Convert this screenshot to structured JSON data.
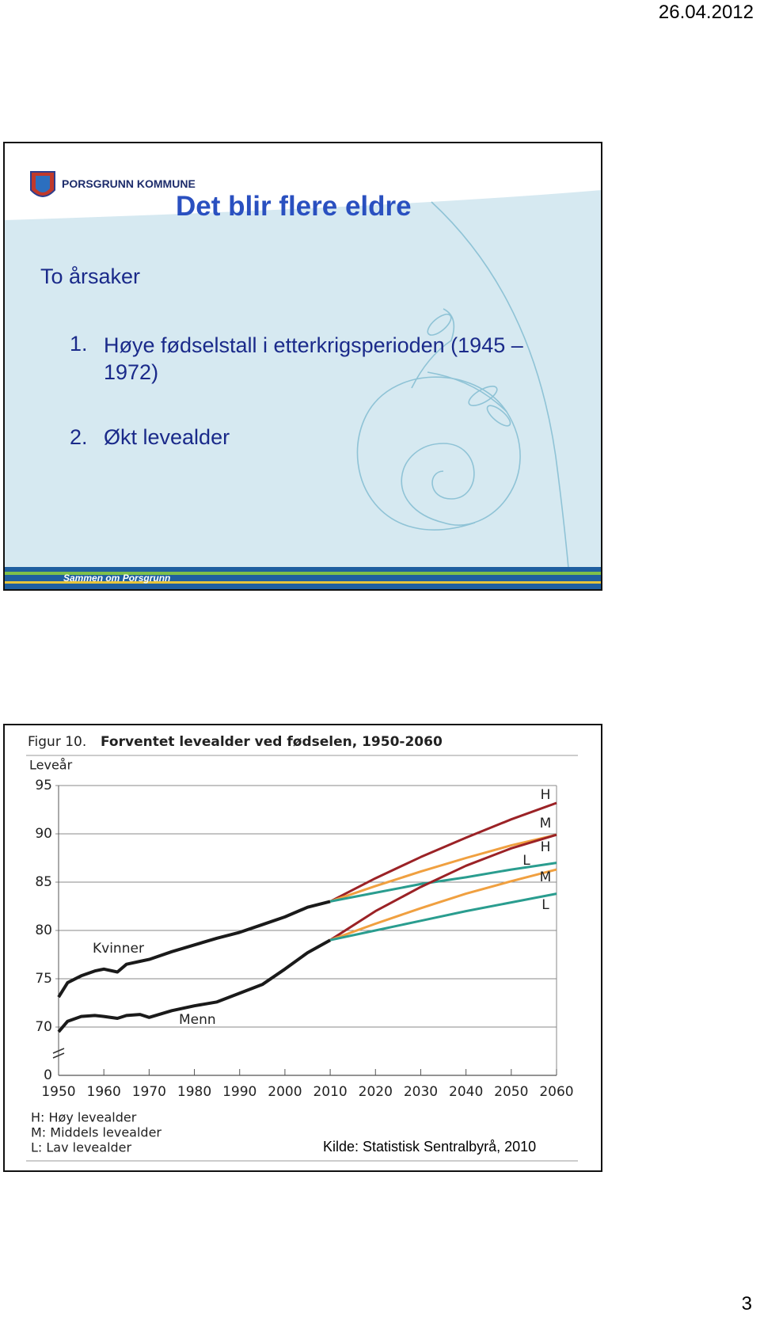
{
  "header": {
    "date": "26.04.2012"
  },
  "slide1": {
    "logo_text": "PORSGRUNN KOMMUNE",
    "title": "Det blir flere eldre",
    "intro": "To årsaker",
    "items": [
      {
        "number": "1.",
        "text": "Høye fødselstall i etterkrigsperioden (1945 – 1972)"
      },
      {
        "number": "2.",
        "text": "Økt levealder"
      }
    ],
    "slogan": "Sammen om Porsgrunn"
  },
  "chart_data": {
    "type": "line",
    "figure_label": "Figur 10.",
    "title": "Forventet levealder ved fødselen, 1950-2060",
    "y_label": "Leveår",
    "y_break_label": "0",
    "xlim": [
      1950,
      2060
    ],
    "xticks": [
      1950,
      1960,
      1970,
      1980,
      1990,
      2000,
      2010,
      2020,
      2030,
      2040,
      2050,
      2060
    ],
    "ylim": [
      65,
      95
    ],
    "yticks": [
      70,
      75,
      80,
      85,
      90,
      95
    ],
    "grid": true,
    "series": [
      {
        "name": "Kvinner",
        "color": "#1a1a1a",
        "x": [
          1950,
          1952,
          1955,
          1958,
          1960,
          1963,
          1965,
          1968,
          1970,
          1975,
          1980,
          1985,
          1990,
          1995,
          2000,
          2005,
          2010
        ],
        "values": [
          73.1,
          74.6,
          75.3,
          75.8,
          76.0,
          75.7,
          76.5,
          76.8,
          77.0,
          77.8,
          78.5,
          79.2,
          79.8,
          80.6,
          81.4,
          82.4,
          83.0
        ]
      },
      {
        "name": "Menn",
        "color": "#1a1a1a",
        "x": [
          1950,
          1952,
          1955,
          1958,
          1960,
          1963,
          1965,
          1968,
          1970,
          1975,
          1980,
          1985,
          1990,
          1995,
          2000,
          2005,
          2010
        ],
        "values": [
          69.5,
          70.6,
          71.1,
          71.2,
          71.1,
          70.9,
          71.2,
          71.3,
          71.0,
          71.7,
          72.2,
          72.6,
          73.5,
          74.4,
          76.0,
          77.7,
          79.0
        ]
      },
      {
        "name": "H",
        "color": "#9b2226",
        "x": [
          2010,
          2020,
          2030,
          2040,
          2050,
          2060
        ],
        "values": [
          83.0,
          85.4,
          87.6,
          89.6,
          91.5,
          93.2
        ]
      },
      {
        "name": "M",
        "color": "#f0a040",
        "x": [
          2010,
          2020,
          2030,
          2040,
          2050,
          2060
        ],
        "values": [
          83.0,
          84.6,
          86.1,
          87.5,
          88.8,
          89.9
        ]
      },
      {
        "name": "L",
        "color": "#2a9d8f",
        "x": [
          2010,
          2020,
          2030,
          2040,
          2050,
          2060
        ],
        "values": [
          83.0,
          83.9,
          84.8,
          85.5,
          86.3,
          87.0
        ]
      },
      {
        "name": "H",
        "color": "#9b2226",
        "x": [
          2010,
          2020,
          2030,
          2040,
          2050,
          2060
        ],
        "values": [
          79.0,
          82.0,
          84.5,
          86.7,
          88.5,
          89.9
        ]
      },
      {
        "name": "M",
        "color": "#f0a040",
        "x": [
          2010,
          2020,
          2030,
          2040,
          2050,
          2060
        ],
        "values": [
          79.0,
          80.7,
          82.3,
          83.8,
          85.1,
          86.3
        ]
      },
      {
        "name": "L",
        "color": "#2a9d8f",
        "x": [
          2010,
          2020,
          2030,
          2040,
          2050,
          2060
        ],
        "values": [
          79.0,
          80.0,
          81.0,
          82.0,
          82.9,
          83.8
        ]
      }
    ],
    "notes": [
      "H: Høy levealder",
      "M: Middels levealder",
      "L: Lav levealder"
    ]
  },
  "source": "Kilde: Statistisk Sentralbyrå, 2010",
  "footer": {
    "page_number": "3"
  }
}
